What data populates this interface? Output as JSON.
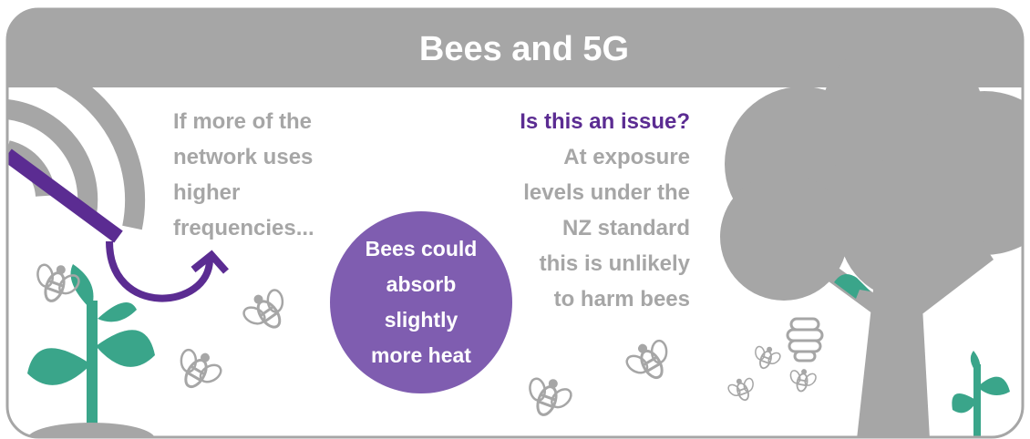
{
  "header": {
    "title": "Bees and 5G"
  },
  "left_text": {
    "lines": [
      "If more of the",
      "network uses",
      "higher",
      "frequencies..."
    ]
  },
  "circle_text": {
    "lines": [
      "Bees could",
      "absorb",
      "slightly",
      "more heat"
    ]
  },
  "right_text": {
    "heading": "Is this an issue?",
    "lines": [
      "At exposure",
      "levels under the",
      "NZ standard",
      "this is unlikely",
      "to harm bees"
    ]
  }
}
